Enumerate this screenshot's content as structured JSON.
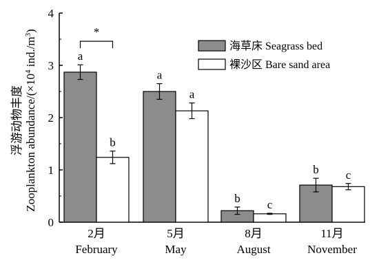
{
  "chart_data": {
    "type": "bar",
    "ylabel_line1": "浮游动物丰度",
    "ylabel_line2_prefix": "Zooplankton abundance/(×10",
    "ylabel_line2_exp": "4",
    "ylabel_line2_mid": " ind./m",
    "ylabel_line2_exp2": "3",
    "ylabel_line2_suffix": ")",
    "ylim": [
      0,
      4
    ],
    "yticks": [
      "0",
      "1",
      "2",
      "3",
      "4"
    ],
    "categories": [
      {
        "zh": "2月",
        "en": "February"
      },
      {
        "zh": "5月",
        "en": "May"
      },
      {
        "zh": "8月",
        "en": "August"
      },
      {
        "zh": "11月",
        "en": "November"
      }
    ],
    "series": [
      {
        "name": "海草床 Seagrass bed",
        "color": "#8c8c8c",
        "values": [
          2.87,
          2.5,
          0.22,
          0.71
        ],
        "errors": [
          0.14,
          0.15,
          0.07,
          0.13
        ],
        "letters": [
          "a",
          "a",
          "b",
          "b"
        ]
      },
      {
        "name": "裸沙区 Bare sand area",
        "color": "#ffffff",
        "values": [
          1.24,
          2.13,
          0.16,
          0.68
        ],
        "errors": [
          0.12,
          0.15,
          0.01,
          0.06
        ],
        "letters": [
          "b",
          "a",
          "c",
          "c"
        ]
      }
    ],
    "significance": {
      "category_index": 0,
      "label": "*"
    },
    "legend_position": "top-right",
    "grid": false
  }
}
